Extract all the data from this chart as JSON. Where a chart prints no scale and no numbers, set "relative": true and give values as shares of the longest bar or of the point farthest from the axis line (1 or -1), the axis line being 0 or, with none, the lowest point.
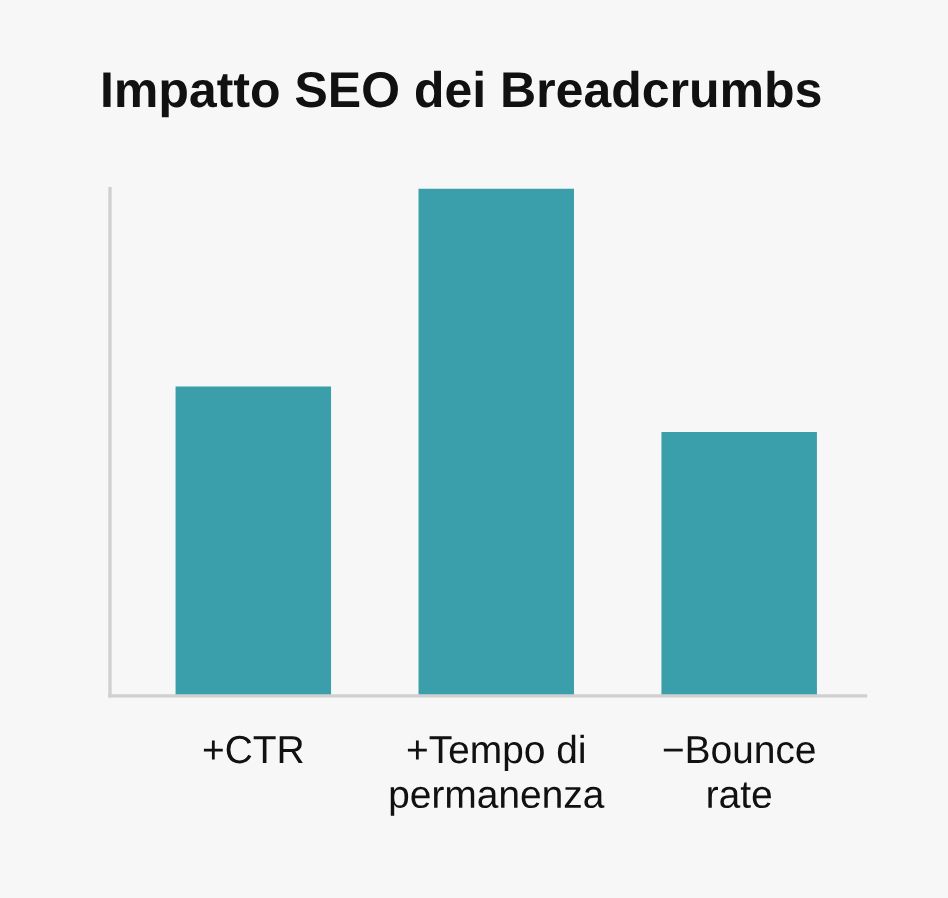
{
  "chart_data": {
    "type": "bar",
    "title": "Impatto SEO dei Breadcrumbs",
    "categories": [
      "+CTR",
      "+Tempo di\npermanenza",
      "−Bounce\nrate"
    ],
    "values": [
      0.61,
      1,
      0.52
    ],
    "color": "#3a9eab",
    "relative": true,
    "grid": false
  }
}
